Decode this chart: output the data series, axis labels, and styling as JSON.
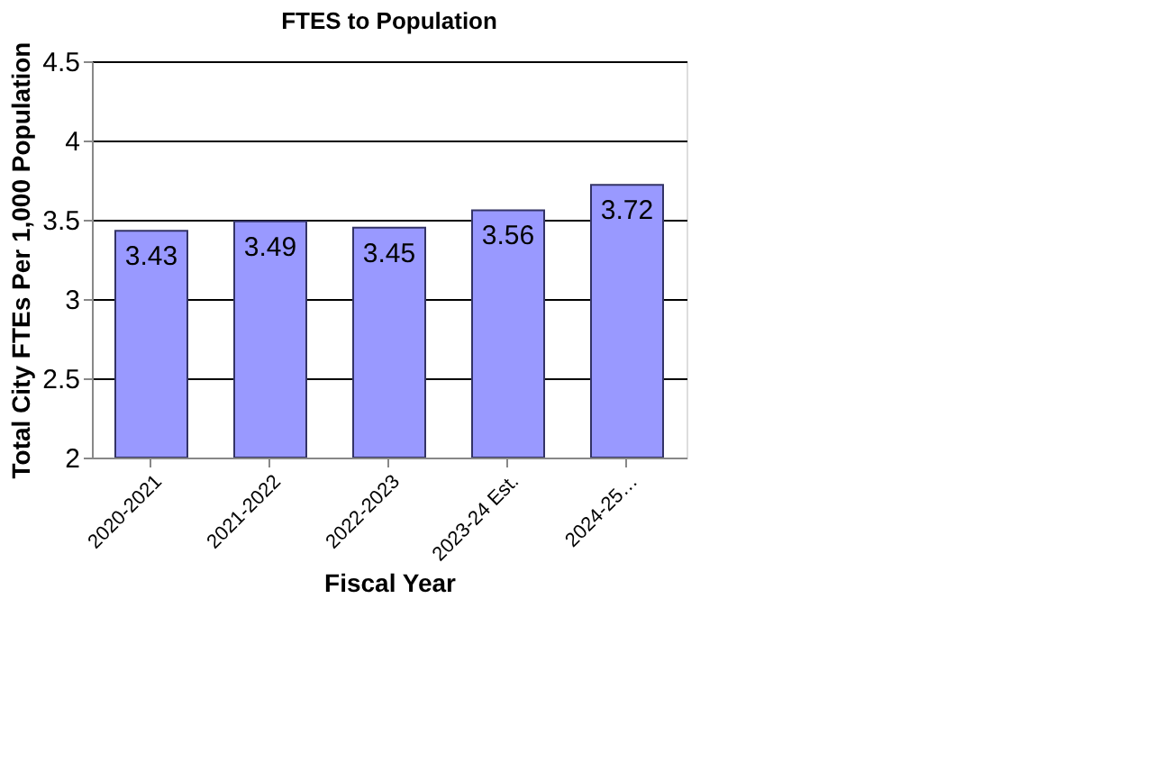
{
  "chart_data": {
    "type": "bar",
    "title": "FTES to Population",
    "xlabel": "Fiscal Year",
    "ylabel": "Total City FTEs Per 1,000 Population",
    "categories": [
      "2020-2021",
      "2021-2022",
      "2022-2023",
      "2023-24 Est.",
      "2024-25…"
    ],
    "values": [
      3.43,
      3.49,
      3.45,
      3.56,
      3.72
    ],
    "color": "#9999ff",
    "ylim": [
      2,
      4.5
    ],
    "yticks": [
      2,
      2.5,
      3,
      3.5,
      4,
      4.5
    ],
    "grid": "y",
    "data_labels": true
  }
}
